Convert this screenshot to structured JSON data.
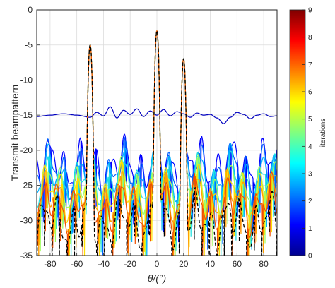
{
  "chart_data": {
    "type": "line",
    "xlabel": "θ/(°)",
    "ylabel": "Transmit beampattern",
    "xlim": [
      -90,
      90
    ],
    "ylim": [
      -35,
      0
    ],
    "x_ticks": [
      "-80",
      "-60",
      "-40",
      "-20",
      "0",
      "20",
      "40",
      "60",
      "80"
    ],
    "y_ticks": [
      "0",
      "-5",
      "-10",
      "-15",
      "-20",
      "-25",
      "-30",
      "-35"
    ],
    "grid": true,
    "main_lobes_deg": [
      -50,
      0,
      20
    ],
    "main_lobe_peaks_db": [
      -5,
      -3,
      -7
    ],
    "series": [
      {
        "iteration": 0,
        "color": "#0000bf",
        "style": "solid",
        "x": [
          -90,
          -80,
          -70,
          -60,
          -50,
          -45,
          -40,
          -35,
          -30,
          -25,
          -20,
          -15,
          -10,
          -5,
          0,
          5,
          10,
          15,
          20,
          25,
          30,
          35,
          40,
          45,
          50,
          55,
          60,
          65,
          70,
          75,
          80,
          85,
          90
        ],
        "y": [
          -15.2,
          -15.0,
          -14.8,
          -15.0,
          -15.3,
          -14.6,
          -15.1,
          -13.8,
          -15.4,
          -14.3,
          -14.9,
          -14.1,
          -15.2,
          -14.4,
          -15.0,
          -14.2,
          -15.1,
          -14.5,
          -14.8,
          -15.3,
          -14.7,
          -15.0,
          -14.9,
          -15.4,
          -16.2,
          -15.3,
          -14.6,
          -14.9,
          -15.5,
          -15.0,
          -14.8,
          -15.2,
          -15.1
        ]
      },
      {
        "iteration": 1,
        "color": "#0000ff",
        "style": "solid",
        "floor_db": -21.5
      },
      {
        "iteration": 2,
        "color": "#0060ff",
        "style": "solid",
        "floor_db": -22.3
      },
      {
        "iteration": 3,
        "color": "#00b0ff",
        "style": "solid",
        "floor_db": -23.1
      },
      {
        "iteration": 4,
        "color": "#20e0e0",
        "style": "solid",
        "floor_db": -23.9
      },
      {
        "iteration": 5,
        "color": "#a0ff60",
        "style": "solid",
        "floor_db": -24.7
      },
      {
        "iteration": 6,
        "color": "#ffe000",
        "style": "solid",
        "floor_db": -25.5
      },
      {
        "iteration": 7,
        "color": "#ffa000",
        "style": "solid",
        "floor_db": -26.3
      },
      {
        "iteration": 8,
        "color": "#f05000",
        "style": "solid",
        "floor_db": -27.1
      },
      {
        "iteration": 9,
        "color": "#000000",
        "style": "dashed",
        "floor_db": -29.5
      }
    ]
  },
  "colorbar": {
    "label": "iterations",
    "min": 0,
    "max": 9,
    "ticks": [
      "0",
      "1",
      "2",
      "3",
      "4",
      "5",
      "6",
      "7",
      "8",
      "9"
    ],
    "colors": [
      "#00008f",
      "#0000ff",
      "#0080ff",
      "#00ffff",
      "#80ff80",
      "#ffff00",
      "#ff8000",
      "#ff0000",
      "#800000"
    ]
  }
}
